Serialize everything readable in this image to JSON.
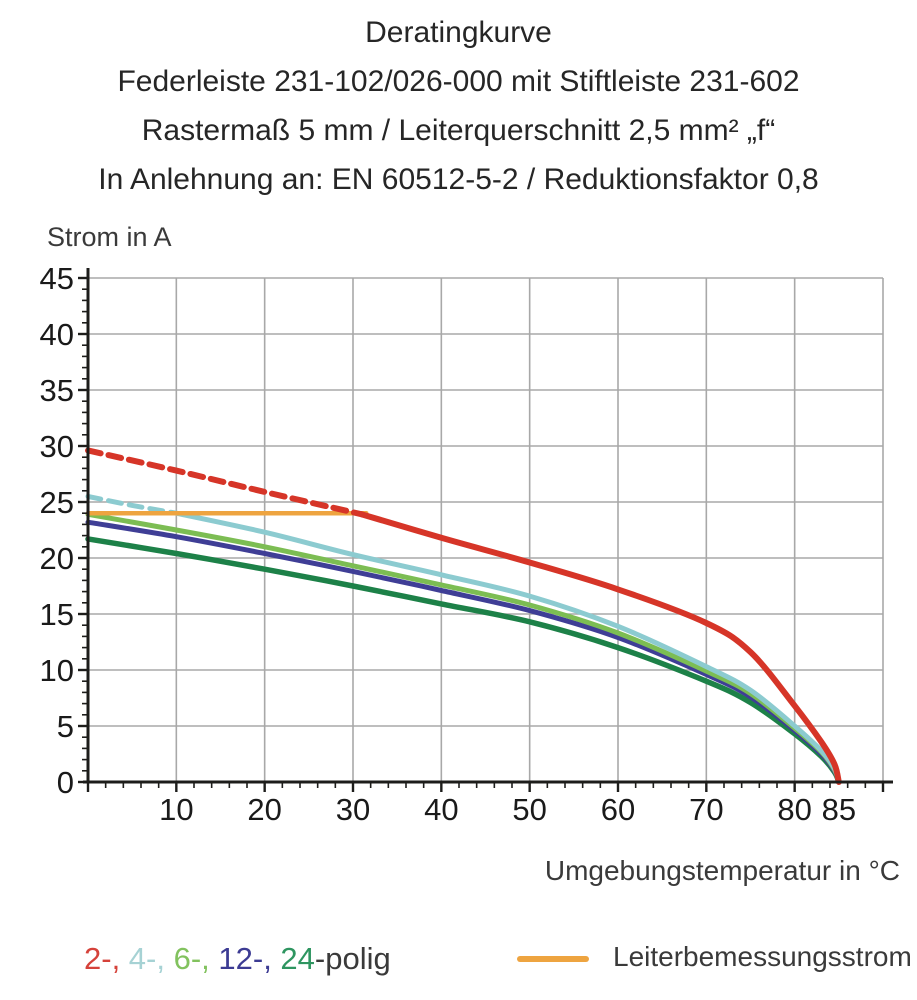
{
  "title": {
    "line1": "Deratingkurve",
    "line2": "Federleiste 231-102/026-000 mit Stiftleiste 231-602",
    "line3": "Rastermaß 5 mm / Leiterquerschnitt 2,5 mm² „f“",
    "line4": "In Anlehnung an: EN 60512-5-2 / Reduktionsfaktor 0,8"
  },
  "axes": {
    "y_title": "Strom in A",
    "x_title": "Umgebungstemperatur in °C"
  },
  "legend": {
    "polig_items": [
      {
        "text": "2-, ",
        "color": "#d5423a"
      },
      {
        "text": "4-, ",
        "color": "#a6d2d4"
      },
      {
        "text": "6-, ",
        "color": "#82c25e"
      },
      {
        "text": "12-, ",
        "color": "#3c3b93"
      },
      {
        "text": "24",
        "color": "#2e9560"
      },
      {
        "text": "-polig",
        "color": "#3a3a3a"
      }
    ],
    "rated_current_label": "Leiterbemessungsstrom",
    "rated_current_color": "#eea440"
  },
  "chart_data": {
    "type": "line",
    "title": "Deratingkurve",
    "xlabel": "Umgebungstemperatur in °C",
    "ylabel": "Strom in A",
    "xlim": [
      0,
      90
    ],
    "ylim": [
      0,
      45
    ],
    "grid": true,
    "grid_color": "#a8a8a8",
    "x_major_ticks": [
      10,
      20,
      30,
      40,
      50,
      60,
      70,
      80,
      85
    ],
    "y_major_ticks": [
      0,
      5,
      10,
      15,
      20,
      25,
      30,
      35,
      40,
      45
    ],
    "x_minor_step": 2,
    "y_minor_step": 1,
    "x_grid_step": 10,
    "y_grid_step": 5,
    "series": [
      {
        "name": "24-polig",
        "color": "#1d8148",
        "width": 5.5,
        "segments": [
          {
            "style": "solid",
            "points": [
              [
                0,
                21.7
              ],
              [
                10,
                20.4
              ],
              [
                20,
                19.0
              ],
              [
                30,
                17.5
              ],
              [
                40,
                15.9
              ],
              [
                50,
                14.3
              ],
              [
                60,
                12.0
              ],
              [
                70,
                9.0
              ],
              [
                75,
                7.1
              ],
              [
                80,
                4.3
              ],
              [
                83,
                2.3
              ],
              [
                84.5,
                0.9
              ],
              [
                85,
                0
              ]
            ]
          }
        ]
      },
      {
        "name": "12-polig",
        "color": "#3f3e96",
        "width": 5,
        "segments": [
          {
            "style": "solid",
            "points": [
              [
                0,
                23.2
              ],
              [
                10,
                21.9
              ],
              [
                20,
                20.4
              ],
              [
                30,
                18.8
              ],
              [
                40,
                17.1
              ],
              [
                50,
                15.3
              ],
              [
                60,
                12.9
              ],
              [
                70,
                9.6
              ],
              [
                75,
                7.6
              ],
              [
                80,
                4.6
              ],
              [
                83,
                2.5
              ],
              [
                84.5,
                1.0
              ],
              [
                85,
                0
              ]
            ]
          }
        ]
      },
      {
        "name": "6-polig",
        "color": "#7cbd53",
        "width": 5,
        "segments": [
          {
            "style": "solid",
            "points": [
              [
                0,
                23.9
              ],
              [
                10,
                22.5
              ],
              [
                20,
                21.0
              ],
              [
                30,
                19.3
              ],
              [
                40,
                17.6
              ],
              [
                50,
                15.8
              ],
              [
                60,
                13.3
              ],
              [
                70,
                9.9
              ],
              [
                75,
                7.9
              ],
              [
                80,
                4.8
              ],
              [
                83,
                2.7
              ],
              [
                84.5,
                1.1
              ],
              [
                85,
                0
              ]
            ]
          }
        ]
      },
      {
        "name": "4-polig",
        "color": "#8ccbd0",
        "width": 5,
        "segments": [
          {
            "style": "dashed",
            "points": [
              [
                0,
                25.5
              ],
              [
                5,
                24.7
              ],
              [
                10,
                24.0
              ]
            ]
          },
          {
            "style": "solid",
            "points": [
              [
                10,
                24.0
              ],
              [
                20,
                22.3
              ],
              [
                30,
                20.3
              ],
              [
                40,
                18.5
              ],
              [
                50,
                16.6
              ],
              [
                60,
                13.9
              ],
              [
                70,
                10.3
              ],
              [
                75,
                8.2
              ],
              [
                80,
                5.0
              ],
              [
                83,
                2.8
              ],
              [
                84.5,
                1.2
              ],
              [
                85,
                0
              ]
            ]
          }
        ]
      },
      {
        "name": "Leiterbemessungsstrom",
        "color": "#eea440",
        "width": 4.5,
        "segments": [
          {
            "style": "solid",
            "points": [
              [
                0,
                24
              ],
              [
                31.5,
                24
              ]
            ]
          }
        ]
      },
      {
        "name": "2-polig",
        "color": "#d63528",
        "width": 6,
        "segments": [
          {
            "style": "dashed",
            "points": [
              [
                0,
                29.6
              ],
              [
                10,
                27.8
              ],
              [
                20,
                25.9
              ],
              [
                31,
                23.9
              ]
            ]
          },
          {
            "style": "solid",
            "points": [
              [
                31,
                23.9
              ],
              [
                40,
                21.8
              ],
              [
                50,
                19.6
              ],
              [
                60,
                17.2
              ],
              [
                70,
                14.2
              ],
              [
                75,
                11.6
              ],
              [
                80,
                6.8
              ],
              [
                83,
                3.6
              ],
              [
                84.5,
                1.6
              ],
              [
                85,
                0
              ]
            ]
          }
        ]
      }
    ],
    "legend_entries": [
      "2-polig",
      "4-polig",
      "6-polig",
      "12-polig",
      "24-polig",
      "Leiterbemessungsstrom"
    ],
    "legend_position": "bottom"
  }
}
